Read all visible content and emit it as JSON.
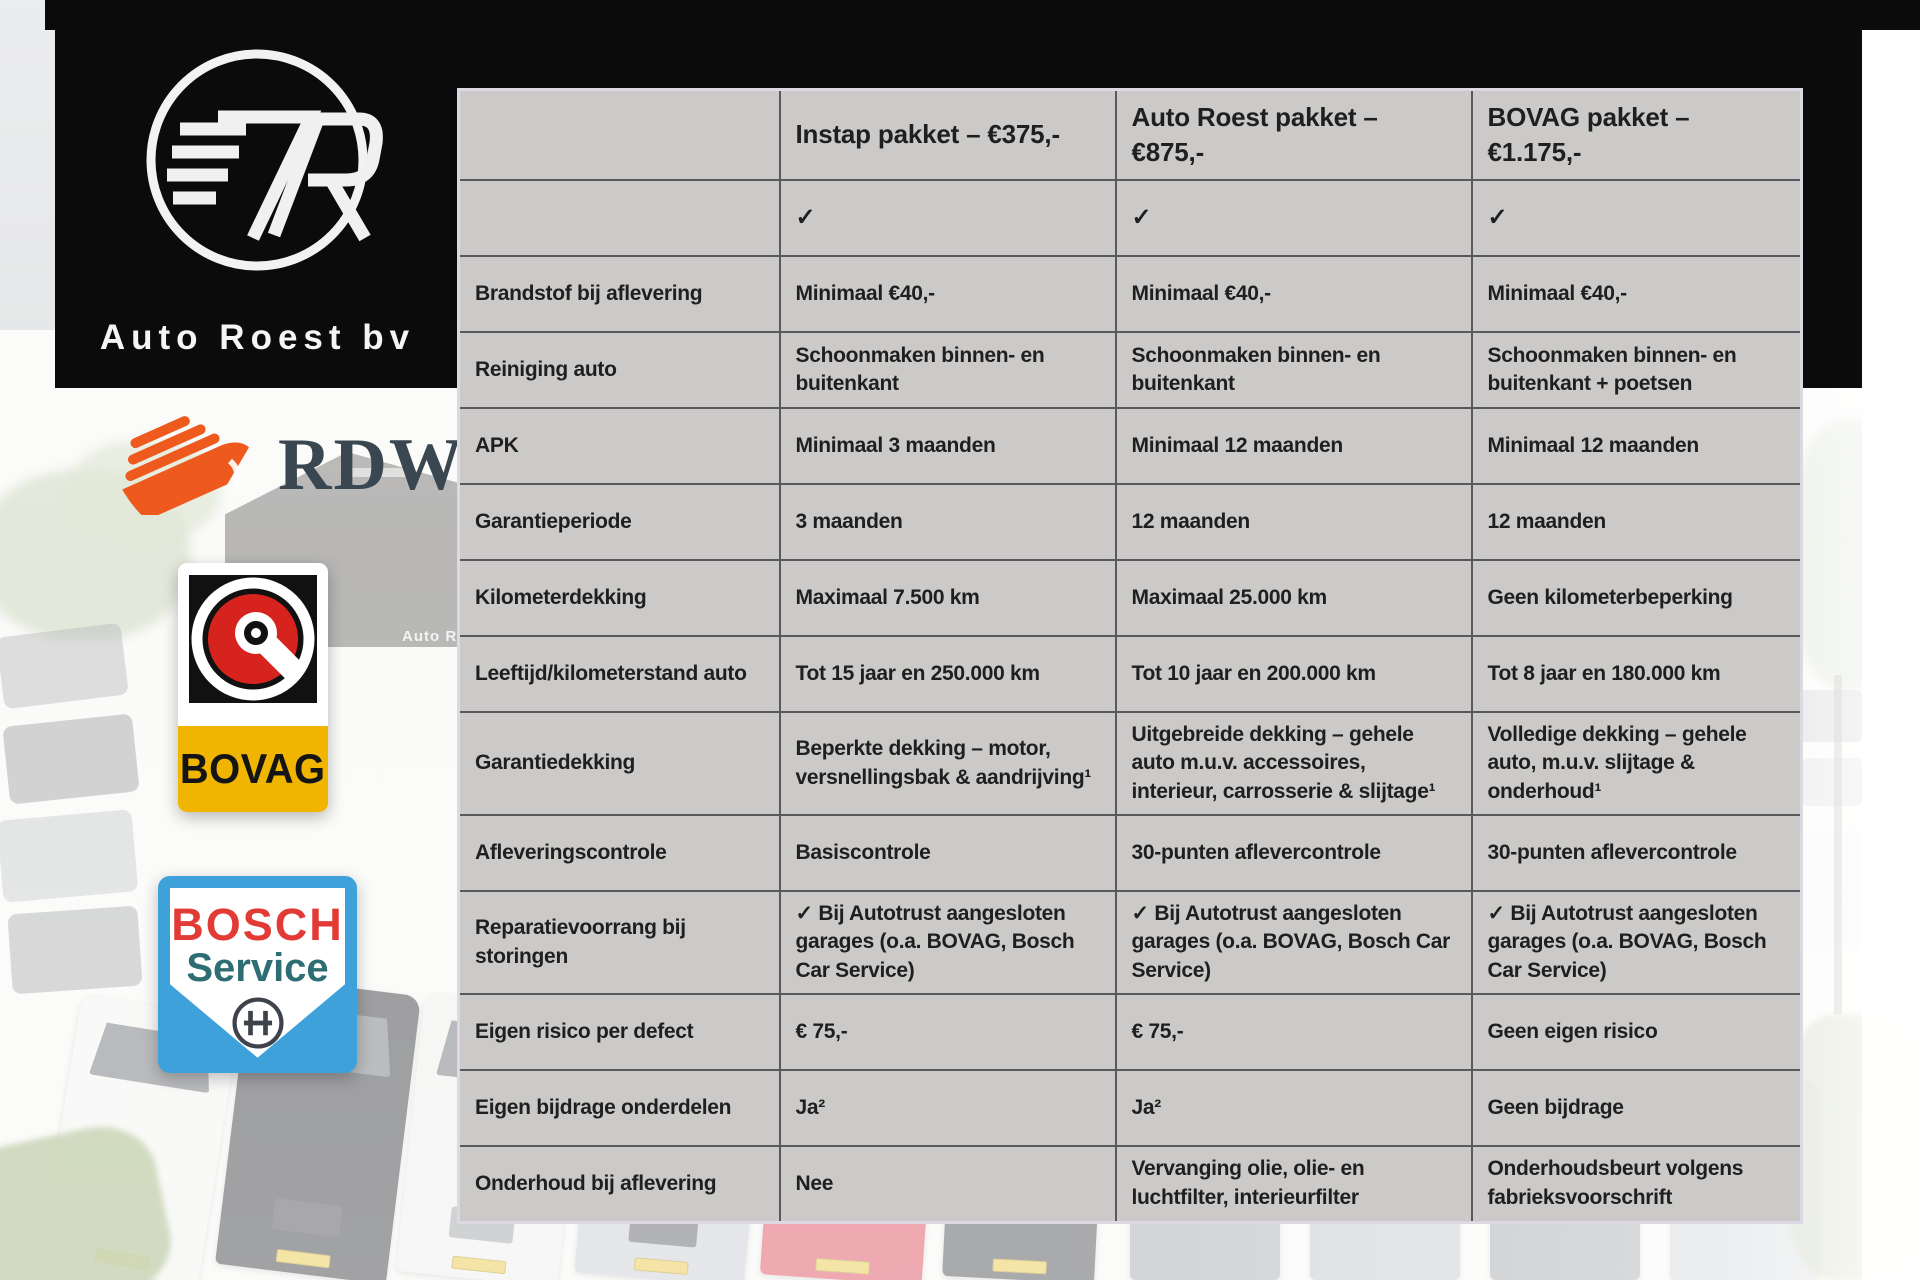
{
  "brand": {
    "name": "Auto Roest bv",
    "monogram": "7R"
  },
  "partner_logos": {
    "rdw": {
      "label": "RDW"
    },
    "bovag": {
      "label": "BOVAG"
    },
    "bosch": {
      "word": "BOSCH",
      "service": "Service"
    }
  },
  "background": {
    "building_sign": "Auto Ro"
  },
  "colors": {
    "panel_black": "#0b0b0b",
    "table_bg": "#cbcac9",
    "table_grid": "#59595b",
    "table_outer": "#dcd8e4",
    "text": "#1f1f1f",
    "rdw_orange": "#ee5a1d",
    "rdw_text": "#3a4750",
    "bovag_red": "#d7231d",
    "bovag_yellow": "#f0b500",
    "bosch_red": "#e23b36",
    "bosch_teal": "#2e6d73",
    "bosch_blue": "#3ea1da"
  },
  "table": {
    "columns": [
      "",
      "Instap pakket – €375,-",
      "Auto Roest pakket – €875,-",
      "BOVAG pakket – €1.175,-"
    ],
    "rows": [
      {
        "label": "",
        "cells": [
          "✓",
          "✓",
          "✓"
        ]
      },
      {
        "label": "Brandstof bij aflevering",
        "cells": [
          "Minimaal €40,-",
          "Minimaal €40,-",
          "Minimaal €40,-"
        ]
      },
      {
        "label": "Reiniging auto",
        "cells": [
          "Schoonmaken binnen- en buitenkant",
          "Schoonmaken binnen- en buitenkant",
          "Schoonmaken binnen- en buitenkant + poetsen"
        ]
      },
      {
        "label": "APK",
        "cells": [
          "Minimaal 3 maanden",
          "Minimaal 12 maanden",
          "Minimaal 12 maanden"
        ]
      },
      {
        "label": "Garantieperiode",
        "cells": [
          "3 maanden",
          "12 maanden",
          "12 maanden"
        ]
      },
      {
        "label": "Kilometerdekking",
        "cells": [
          "Maximaal 7.500 km",
          "Maximaal 25.000 km",
          "Geen kilometerbeperking"
        ]
      },
      {
        "label": "Leeftijd/kilometerstand auto",
        "cells": [
          "Tot 15 jaar en 250.000 km",
          "Tot 10 jaar en 200.000 km",
          "Tot 8 jaar en 180.000 km"
        ]
      },
      {
        "label": "Garantiedekking",
        "cells": [
          "Beperkte dekking – motor, versnellingsbak & aandrijving¹",
          "Uitgebreide dekking – gehele auto m.u.v. accessoires, interieur, carrosserie & slijtage¹",
          "Volledige dekking – gehele auto, m.u.v. slijtage & onderhoud¹"
        ]
      },
      {
        "label": "Afleveringscontrole",
        "cells": [
          "Basiscontrole",
          "30-punten aflevercontrole",
          "30-punten aflevercontrole"
        ]
      },
      {
        "label": "Reparatievoorrang bij storingen",
        "cells": [
          "✓ Bij Autotrust aangesloten garages (o.a. BOVAG, Bosch Car Service)",
          "✓ Bij Autotrust aangesloten garages (o.a. BOVAG, Bosch Car Service)",
          "✓ Bij Autotrust aangesloten garages (o.a. BOVAG, Bosch Car Service)"
        ]
      },
      {
        "label": "Eigen risico per defect",
        "cells": [
          "€ 75,-",
          "€ 75,-",
          "Geen eigen risico"
        ]
      },
      {
        "label": "Eigen bijdrage onderdelen",
        "cells": [
          "Ja²",
          "Ja²",
          "Geen bijdrage"
        ]
      },
      {
        "label": "Onderhoud bij aflevering",
        "cells": [
          "Nee",
          "Vervanging olie, olie- en luchtfilter, interieurfilter",
          "Onderhoudsbeurt volgens fabrieksvoorschrift"
        ]
      }
    ]
  }
}
